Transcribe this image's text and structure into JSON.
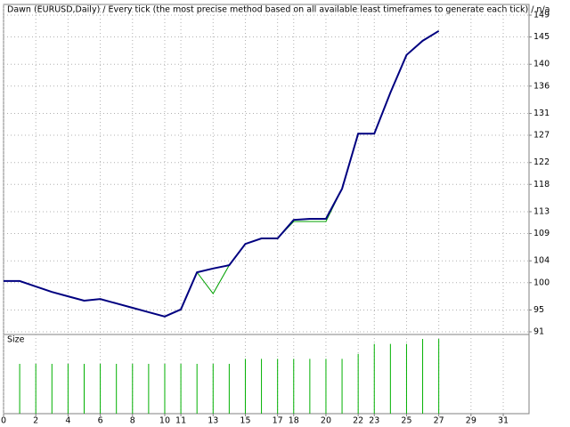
{
  "chart_data": [
    {
      "type": "line",
      "title": "Dawn (EURUSD,Daily) / Every tick (the most precise method based on all available least timeframes to generate each tick) / n/a",
      "x": [
        0,
        1,
        2,
        3,
        4,
        5,
        6,
        7,
        8,
        9,
        10,
        11,
        12,
        13,
        14,
        15,
        16,
        17,
        18,
        19,
        20,
        21,
        22,
        23,
        24,
        25,
        26,
        27
      ],
      "series": [
        {
          "color": "#000080",
          "values": [
            100.3,
            100.3,
            99.3,
            98.3,
            97.5,
            96.7,
            97.0,
            96.2,
            95.4,
            94.6,
            93.8,
            95.1,
            101.9,
            102.6,
            103.2,
            107.1,
            108.1,
            108.1,
            111.5,
            111.7,
            111.7,
            117.2,
            127.3,
            127.3,
            134.8,
            141.7,
            144.3,
            146.1
          ]
        },
        {
          "color": "#00a000",
          "values": [
            100.3,
            100.3,
            99.3,
            98.3,
            97.5,
            96.7,
            97.0,
            96.2,
            95.4,
            94.6,
            93.8,
            95.1,
            101.9,
            98.0,
            103.2,
            107.1,
            108.1,
            108.1,
            111.2,
            111.2,
            111.2,
            117.2,
            127.3,
            127.3,
            134.8,
            141.7,
            144.3,
            146.1
          ]
        }
      ],
      "xlim": [
        0,
        32.6
      ],
      "xticks": [
        0,
        2,
        4,
        6,
        8,
        10,
        11,
        13,
        15,
        17,
        18,
        20,
        22,
        23,
        25,
        27,
        29,
        31
      ],
      "ylim": [
        91,
        149
      ],
      "yticks": [
        91,
        95,
        100,
        104,
        109,
        113,
        118,
        122,
        127,
        131,
        136,
        140,
        145,
        149
      ],
      "grid": true
    },
    {
      "type": "bar",
      "title": "Size",
      "x": [
        1,
        2,
        3,
        4,
        5,
        6,
        7,
        8,
        9,
        10,
        11,
        12,
        13,
        14,
        15,
        16,
        17,
        18,
        19,
        20,
        21,
        22,
        23,
        24,
        25,
        26,
        27
      ],
      "values": [
        1.0,
        1.0,
        1.0,
        1.0,
        1.0,
        1.0,
        1.0,
        1.0,
        1.0,
        1.0,
        1.0,
        1.0,
        1.0,
        1.0,
        1.1,
        1.1,
        1.1,
        1.1,
        1.1,
        1.1,
        1.1,
        1.2,
        1.4,
        1.4,
        1.4,
        1.5,
        1.5
      ],
      "color": "#00b000",
      "ylim": [
        0,
        1.5
      ]
    }
  ]
}
